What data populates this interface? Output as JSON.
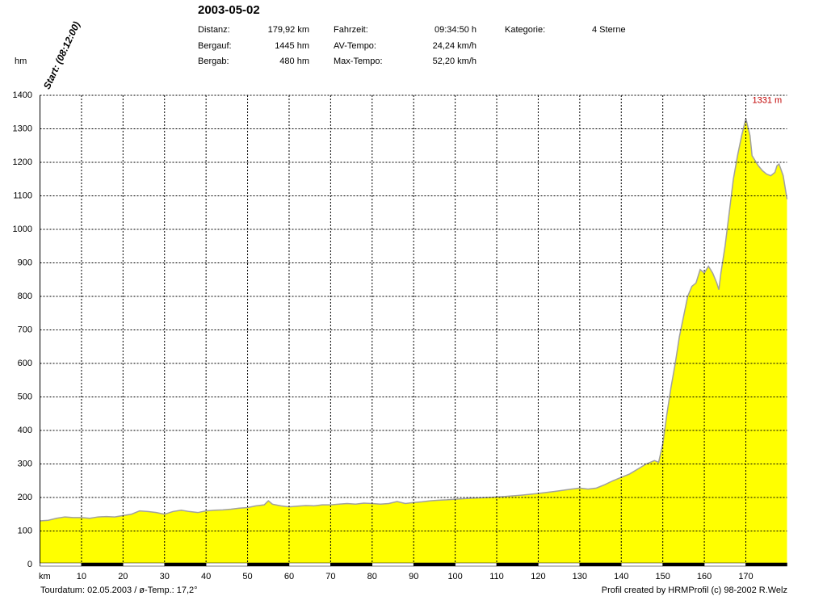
{
  "chart_data": {
    "type": "area",
    "title": "2003-05-02",
    "stats": [
      [
        "Distanz:",
        "179,92 km",
        "Fahrzeit:",
        "09:34:50 h",
        "Kategorie:",
        "4 Sterne"
      ],
      [
        "Bergauf:",
        "1445 hm",
        "AV-Tempo:",
        "24,24 km/h"
      ],
      [
        "Bergab:",
        "480 hm",
        "Max-Tempo:",
        "52,20 km/h"
      ]
    ],
    "start_label": "Start: (08:12:00)",
    "ylabel": "hm",
    "xlabel": "km",
    "footer_left": "Tourdatum: 02.05.2003  /  ø-Temp.: 17,2°",
    "footer_right": "Profil created by HRMProfil (c) 98-2002 R.Welz",
    "annotation": "1331 m",
    "x": [
      0,
      2,
      4,
      6,
      8,
      10,
      12,
      14,
      16,
      18,
      20,
      22,
      24,
      26,
      28,
      30,
      32,
      34,
      36,
      38,
      40,
      42,
      44,
      46,
      48,
      50,
      52,
      54,
      55,
      56,
      58,
      60,
      62,
      64,
      66,
      68,
      70,
      72,
      74,
      76,
      78,
      80,
      82,
      84,
      86,
      88,
      90,
      92,
      94,
      96,
      98,
      100,
      104,
      108,
      112,
      116,
      120,
      124,
      128,
      130,
      132,
      134,
      136,
      138,
      140,
      142,
      144,
      146,
      148,
      149,
      150,
      151,
      152,
      153,
      154,
      155,
      156,
      157,
      158,
      159,
      160,
      161,
      162,
      163,
      163.5,
      164,
      165,
      166,
      167,
      168,
      169,
      170,
      171,
      171.5,
      172,
      173,
      174,
      175,
      176,
      177,
      177.5,
      178,
      179,
      179.92
    ],
    "values": [
      130,
      132,
      138,
      142,
      140,
      140,
      138,
      142,
      143,
      142,
      146,
      150,
      160,
      158,
      155,
      150,
      158,
      162,
      158,
      155,
      160,
      162,
      163,
      165,
      168,
      170,
      175,
      178,
      190,
      180,
      175,
      172,
      174,
      176,
      175,
      178,
      178,
      180,
      182,
      180,
      183,
      182,
      180,
      182,
      188,
      182,
      185,
      187,
      190,
      192,
      193,
      195,
      198,
      200,
      203,
      207,
      212,
      218,
      225,
      228,
      225,
      228,
      238,
      250,
      260,
      270,
      285,
      300,
      310,
      305,
      360,
      450,
      530,
      600,
      680,
      740,
      800,
      830,
      840,
      880,
      870,
      890,
      870,
      840,
      820,
      870,
      950,
      1050,
      1150,
      1220,
      1280,
      1331,
      1280,
      1220,
      1210,
      1190,
      1175,
      1165,
      1160,
      1170,
      1190,
      1195,
      1160,
      1090
    ],
    "color": "#ffff00",
    "line_color": "#a0a0a0",
    "xlim": [
      0,
      179.92
    ],
    "ylim": [
      0,
      1400
    ],
    "xticks": [
      10,
      20,
      30,
      40,
      50,
      60,
      70,
      80,
      90,
      100,
      110,
      120,
      130,
      140,
      150,
      160,
      170
    ],
    "yticks": [
      0,
      100,
      200,
      300,
      400,
      500,
      600,
      700,
      800,
      900,
      1000,
      1100,
      1200,
      1300,
      1400
    ],
    "grid": true
  }
}
